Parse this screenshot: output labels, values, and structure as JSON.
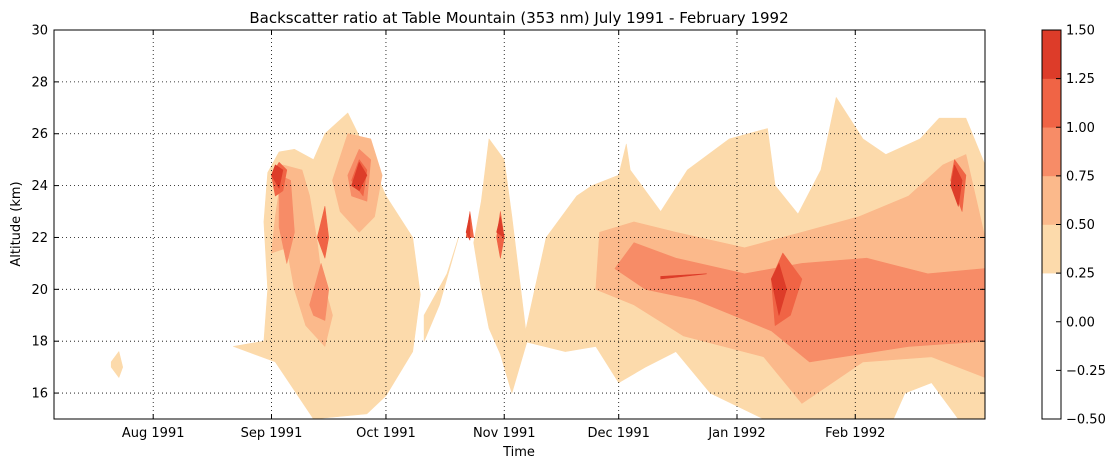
{
  "chart_data": {
    "type": "heatmap",
    "subtype": "filled-contour",
    "title": "Backscatter ratio at Table Mountain (353 nm) July 1991 - February 1992",
    "xlabel": "Time",
    "ylabel": "Altitude (km)",
    "xlim": [
      "1991-07-06",
      "1992-03-06"
    ],
    "ylim": [
      15,
      30
    ],
    "grid": true,
    "x_ticks": [
      {
        "date": "1991-08-01",
        "label": "Aug 1991"
      },
      {
        "date": "1991-09-01",
        "label": "Sep 1991"
      },
      {
        "date": "1991-10-01",
        "label": "Oct 1991"
      },
      {
        "date": "1991-11-01",
        "label": "Nov 1991"
      },
      {
        "date": "1991-12-01",
        "label": "Dec 1991"
      },
      {
        "date": "1992-01-01",
        "label": "Jan 1992"
      },
      {
        "date": "1992-02-01",
        "label": "Feb 1992"
      }
    ],
    "y_ticks": [
      16,
      18,
      20,
      22,
      24,
      26,
      28,
      30
    ],
    "colorbar": {
      "tick_labels": [
        "1.50",
        "1.25",
        "1.00",
        "0.75",
        "0.50",
        "0.25",
        "0.00",
        "−0.25",
        "−0.50"
      ],
      "levels": [
        -0.5,
        -0.25,
        0.0,
        0.25,
        0.5,
        0.75,
        1.0,
        1.25,
        1.5
      ],
      "colors": [
        "#ffffff",
        "#ffffff",
        "#ffffff",
        "#fcdaab",
        "#fbb98b",
        "#f78c67",
        "#f06445",
        "#dd3c29"
      ]
    },
    "regions": [
      {
        "level": 0.25,
        "polygons": [
          [
            [
              "1991-07-21",
              17.0
            ],
            [
              "1991-07-23",
              16.6
            ],
            [
              "1991-07-24",
              17.0
            ],
            [
              "1991-07-23",
              17.6
            ],
            [
              "1991-07-21",
              17.2
            ]
          ],
          [
            [
              "1991-08-22",
              17.8
            ],
            [
              "1991-09-02",
              17.2
            ],
            [
              "1991-09-12",
              15.0
            ],
            [
              "1991-09-26",
              15.2
            ],
            [
              "1991-10-01",
              15.9
            ],
            [
              "1991-10-08",
              17.6
            ],
            [
              "1991-10-10",
              19.8
            ],
            [
              "1991-10-08",
              22.0
            ],
            [
              "1991-10-01",
              23.6
            ],
            [
              "1991-09-25",
              25.6
            ],
            [
              "1991-09-21",
              26.8
            ],
            [
              "1991-09-15",
              26.0
            ],
            [
              "1991-09-12",
              25.0
            ],
            [
              "1991-09-07",
              25.4
            ],
            [
              "1991-09-03",
              25.3
            ],
            [
              "1991-08-31",
              24.5
            ],
            [
              "1991-08-30",
              22.6
            ],
            [
              "1991-08-31",
              20.0
            ],
            [
              "1991-08-30",
              18.0
            ]
          ],
          [
            [
              "1991-10-11",
              18.0
            ],
            [
              "1991-10-15",
              19.4
            ],
            [
              "1991-10-20",
              22.0
            ],
            [
              "1991-10-17",
              20.6
            ],
            [
              "1991-10-11",
              19.0
            ]
          ],
          [
            [
              "1991-10-26",
              20.0
            ],
            [
              "1991-10-24",
              21.8
            ],
            [
              "1991-10-26",
              23.4
            ],
            [
              "1991-10-28",
              25.8
            ],
            [
              "1991-11-01",
              25.0
            ],
            [
              "1991-11-03",
              22.8
            ],
            [
              "1991-11-07",
              18.0
            ],
            [
              "1991-11-03",
              16.0
            ],
            [
              "1991-10-31",
              17.5
            ],
            [
              "1991-10-28",
              18.5
            ]
          ],
          [
            [
              "1991-11-06",
              18.0
            ],
            [
              "1991-11-12",
              22.0
            ],
            [
              "1991-11-20",
              23.6
            ],
            [
              "1991-11-24",
              24.0
            ],
            [
              "1991-12-01",
              24.4
            ],
            [
              "1991-12-03",
              25.6
            ],
            [
              "1991-12-04",
              24.6
            ],
            [
              "1991-12-12",
              23.0
            ],
            [
              "1991-12-19",
              24.6
            ],
            [
              "1991-12-30",
              25.8
            ],
            [
              "1992-01-09",
              26.2
            ],
            [
              "1992-01-11",
              24.0
            ],
            [
              "1992-01-17",
              22.9
            ],
            [
              "1992-01-23",
              24.6
            ],
            [
              "1992-01-27",
              27.4
            ],
            [
              "1992-02-03",
              25.8
            ],
            [
              "1992-02-09",
              25.2
            ],
            [
              "1992-02-18",
              25.8
            ],
            [
              "1992-02-23",
              26.6
            ],
            [
              "1992-03-01",
              26.6
            ],
            [
              "1992-03-06",
              24.8
            ],
            [
              "1992-03-06",
              15.0
            ],
            [
              "1992-02-28",
              15.0
            ],
            [
              "1992-02-21",
              16.4
            ],
            [
              "1992-02-14",
              16.0
            ],
            [
              "1992-02-11",
              15.0
            ],
            [
              "1992-01-08",
              15.0
            ],
            [
              "1991-12-25",
              16.0
            ],
            [
              "1991-12-16",
              17.6
            ],
            [
              "1991-12-08",
              17.0
            ],
            [
              "1991-12-01",
              16.4
            ],
            [
              "1991-11-25",
              17.8
            ],
            [
              "1991-11-17",
              17.6
            ]
          ]
        ]
      },
      {
        "level": 0.5,
        "polygons": [
          [
            [
              "1991-09-01",
              21.4
            ],
            [
              "1991-09-02",
              22.8
            ],
            [
              "1991-09-04",
              24.8
            ],
            [
              "1991-09-09",
              24.6
            ],
            [
              "1991-09-11",
              23.6
            ],
            [
              "1991-09-13",
              21.8
            ],
            [
              "1991-09-14",
              20.6
            ],
            [
              "1991-09-17",
              19.0
            ],
            [
              "1991-09-15",
              17.8
            ],
            [
              "1991-09-10",
              18.6
            ],
            [
              "1991-09-07",
              20.0
            ],
            [
              "1991-09-05",
              21.6
            ]
          ],
          [
            [
              "1991-09-17",
              24.2
            ],
            [
              "1991-09-21",
              26.0
            ],
            [
              "1991-09-27",
              25.8
            ],
            [
              "1991-09-30",
              24.4
            ],
            [
              "1991-09-28",
              22.8
            ],
            [
              "1991-09-24",
              22.2
            ],
            [
              "1991-09-19",
              23.0
            ]
          ],
          [
            [
              "1991-11-25",
              20.0
            ],
            [
              "1991-11-26",
              22.2
            ],
            [
              "1991-12-05",
              22.6
            ],
            [
              "1991-12-16",
              22.2
            ],
            [
              "1992-01-03",
              21.6
            ],
            [
              "1992-01-18",
              22.2
            ],
            [
              "1992-02-02",
              22.8
            ],
            [
              "1992-02-15",
              23.6
            ],
            [
              "1992-02-24",
              24.8
            ],
            [
              "1992-03-01",
              25.2
            ],
            [
              "1992-03-06",
              22.0
            ],
            [
              "1992-03-06",
              16.6
            ],
            [
              "1992-02-21",
              17.4
            ],
            [
              "1992-02-03",
              17.2
            ],
            [
              "1992-01-18",
              15.6
            ],
            [
              "1992-01-08",
              17.4
            ],
            [
              "1991-12-18",
              18.2
            ],
            [
              "1991-12-05",
              19.4
            ]
          ]
        ]
      },
      {
        "level": 0.75,
        "polygons": [
          [
            [
              "1991-09-03",
              24.4
            ],
            [
              "1991-09-06",
              24.2
            ],
            [
              "1991-09-07",
              22.2
            ],
            [
              "1991-09-05",
              21.0
            ],
            [
              "1991-09-03",
              22.4
            ]
          ],
          [
            [
              "1991-09-11",
              19.4
            ],
            [
              "1991-09-14",
              21.0
            ],
            [
              "1991-09-16",
              20.0
            ],
            [
              "1991-09-15",
              18.8
            ],
            [
              "1991-09-12",
              19.0
            ]
          ],
          [
            [
              "1991-09-21",
              24.4
            ],
            [
              "1991-09-24",
              25.4
            ],
            [
              "1991-09-27",
              25.0
            ],
            [
              "1991-09-26",
              23.4
            ],
            [
              "1991-09-22",
              23.6
            ]
          ],
          [
            [
              "1991-11-30",
              20.8
            ],
            [
              "1991-12-05",
              21.8
            ],
            [
              "1991-12-16",
              21.2
            ],
            [
              "1992-01-03",
              20.6
            ],
            [
              "1992-01-18",
              21.0
            ],
            [
              "1992-02-04",
              21.2
            ],
            [
              "1992-02-20",
              20.6
            ],
            [
              "1992-03-06",
              20.8
            ],
            [
              "1992-03-06",
              18.0
            ],
            [
              "1992-02-15",
              17.8
            ],
            [
              "1992-01-20",
              17.2
            ],
            [
              "1992-01-10",
              18.4
            ],
            [
              "1991-12-21",
              19.6
            ],
            [
              "1991-12-08",
              20.0
            ]
          ]
        ]
      },
      {
        "level": 1.0,
        "polygons": [
          [
            [
              "1991-09-01",
              24.4
            ],
            [
              "1991-09-03",
              24.9
            ],
            [
              "1991-09-05",
              24.6
            ],
            [
              "1991-09-04",
              23.8
            ],
            [
              "1991-09-02",
              23.6
            ]
          ],
          [
            [
              "1991-09-13",
              22.0
            ],
            [
              "1991-09-15",
              23.2
            ],
            [
              "1991-09-16",
              22.0
            ],
            [
              "1991-09-15",
              21.2
            ]
          ],
          [
            [
              "1991-09-22",
              24.2
            ],
            [
              "1991-09-24",
              25.0
            ],
            [
              "1991-09-26",
              24.6
            ],
            [
              "1991-09-25",
              23.6
            ]
          ],
          [
            [
              "1991-10-22",
              22.0
            ],
            [
              "1991-10-23",
              23.0
            ],
            [
              "1991-10-24",
              22.0
            ]
          ],
          [
            [
              "1991-10-30",
              22.0
            ],
            [
              "1991-10-31",
              23.0
            ],
            [
              "1991-11-01",
              22.0
            ],
            [
              "1991-10-31",
              21.2
            ]
          ],
          [
            [
              "1992-01-10",
              20.4
            ],
            [
              "1992-01-13",
              21.4
            ],
            [
              "1992-01-18",
              20.4
            ],
            [
              "1992-01-15",
              19.0
            ],
            [
              "1992-01-11",
              18.6
            ]
          ],
          [
            [
              "1992-02-26",
              24.2
            ],
            [
              "1992-02-27",
              25.0
            ],
            [
              "1992-03-01",
              24.4
            ],
            [
              "1992-02-29",
              23.0
            ]
          ]
        ]
      },
      {
        "level": 1.25,
        "polygons": [
          [
            [
              "1991-09-01",
              24.4
            ],
            [
              "1991-09-02",
              24.8
            ],
            [
              "1991-09-04",
              24.6
            ],
            [
              "1991-09-03",
              23.9
            ]
          ],
          [
            [
              "1991-09-22",
              24.0
            ],
            [
              "1991-09-24",
              24.9
            ],
            [
              "1991-09-26",
              24.4
            ],
            [
              "1991-09-24",
              23.8
            ]
          ],
          [
            [
              "1991-10-22",
              22.2
            ],
            [
              "1991-10-23",
              22.9
            ],
            [
              "1991-10-23",
              21.9
            ]
          ],
          [
            [
              "1991-10-30",
              22.2
            ],
            [
              "1991-10-31",
              22.8
            ],
            [
              "1991-11-01",
              22.0
            ]
          ],
          [
            [
              "1991-12-12",
              20.5
            ],
            [
              "1991-12-24",
              20.6
            ],
            [
              "1991-12-12",
              20.4
            ]
          ],
          [
            [
              "1992-01-10",
              20.4
            ],
            [
              "1992-01-12",
              21.0
            ],
            [
              "1992-01-14",
              20.0
            ],
            [
              "1992-01-12",
              19.0
            ]
          ],
          [
            [
              "1992-02-26",
              24.0
            ],
            [
              "1992-02-27",
              24.8
            ],
            [
              "1992-02-29",
              24.2
            ],
            [
              "1992-02-28",
              23.2
            ]
          ]
        ]
      }
    ]
  }
}
